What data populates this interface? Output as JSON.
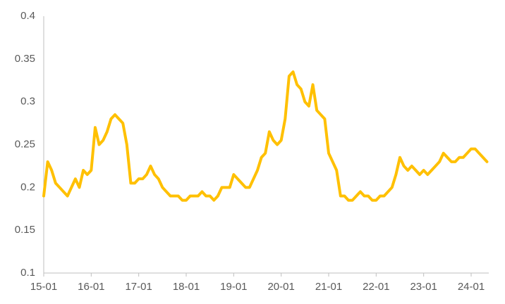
{
  "chart_data": {
    "type": "line",
    "categories": [
      "15-01",
      null,
      null,
      null,
      null,
      null,
      null,
      null,
      null,
      null,
      null,
      null,
      "16-01",
      null,
      null,
      null,
      null,
      null,
      null,
      null,
      null,
      null,
      null,
      null,
      "17-01",
      null,
      null,
      null,
      null,
      null,
      null,
      null,
      null,
      null,
      null,
      null,
      "18-01",
      null,
      null,
      null,
      null,
      null,
      null,
      null,
      null,
      null,
      null,
      null,
      "19-01",
      null,
      null,
      null,
      null,
      null,
      null,
      null,
      null,
      null,
      null,
      null,
      "20-01",
      null,
      null,
      null,
      null,
      null,
      null,
      null,
      null,
      null,
      null,
      null,
      "21-01",
      null,
      null,
      null,
      null,
      null,
      null,
      null,
      null,
      null,
      null,
      null,
      "22-01",
      null,
      null,
      null,
      null,
      null,
      null,
      null,
      null,
      null,
      null,
      null,
      "23-01",
      null,
      null,
      null,
      null,
      null,
      null,
      null,
      null,
      null,
      null,
      null,
      "24-01",
      null,
      null,
      null,
      null
    ],
    "series": [
      {
        "color": "#FFC000",
        "values": [
          0.19,
          0.23,
          0.22,
          0.205,
          0.2,
          0.195,
          0.19,
          0.2,
          0.21,
          0.2,
          0.22,
          0.215,
          0.22,
          0.27,
          0.25,
          0.255,
          0.265,
          0.28,
          0.285,
          0.28,
          0.275,
          0.25,
          0.205,
          0.205,
          0.21,
          0.21,
          0.215,
          0.225,
          0.215,
          0.21,
          0.2,
          0.195,
          0.19,
          0.19,
          0.19,
          0.185,
          0.185,
          0.19,
          0.19,
          0.19,
          0.195,
          0.19,
          0.19,
          0.185,
          0.19,
          0.2,
          0.2,
          0.2,
          0.215,
          0.21,
          0.205,
          0.2,
          0.2,
          0.21,
          0.22,
          0.235,
          0.24,
          0.265,
          0.255,
          0.25,
          0.255,
          0.28,
          0.33,
          0.335,
          0.32,
          0.315,
          0.3,
          0.295,
          0.32,
          0.29,
          0.285,
          0.28,
          0.24,
          0.23,
          0.22,
          0.19,
          0.19,
          0.185,
          0.185,
          0.19,
          0.195,
          0.19,
          0.19,
          0.185,
          0.185,
          0.19,
          0.19,
          0.195,
          0.2,
          0.215,
          0.235,
          0.225,
          0.22,
          0.225,
          0.22,
          0.215,
          0.22,
          0.215,
          0.22,
          0.225,
          0.23,
          0.24,
          0.235,
          0.23,
          0.23,
          0.235,
          0.235,
          0.24,
          0.245,
          0.245,
          0.24,
          0.235,
          0.23
        ]
      }
    ],
    "ylim": [
      0.1,
      0.4
    ],
    "yticks": [
      0.1,
      0.15,
      0.2,
      0.25,
      0.3,
      0.35,
      0.4
    ],
    "grid": false
  }
}
